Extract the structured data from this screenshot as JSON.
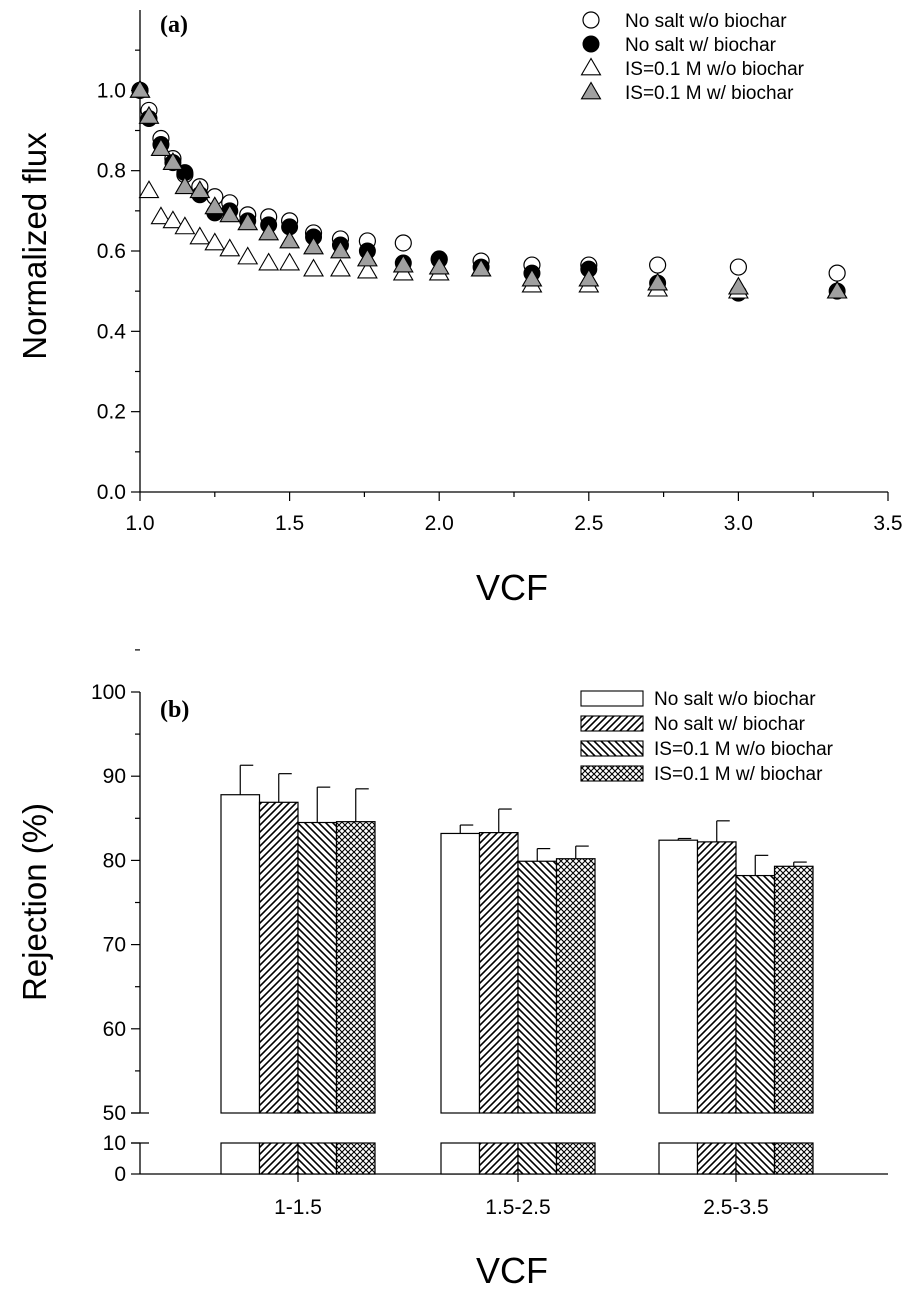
{
  "chart_data": [
    {
      "type": "scatter",
      "panel_label": "(a)",
      "xlabel": "VCF",
      "ylabel": "Normalized flux",
      "xlim": [
        1.0,
        3.5
      ],
      "ylim": [
        0.0,
        1.2
      ],
      "xticks": [
        "1.0",
        "1.5",
        "2.0",
        "2.5",
        "3.0",
        "3.5"
      ],
      "yticks": [
        "0.0",
        "0.2",
        "0.4",
        "0.6",
        "0.8",
        "1.0"
      ],
      "legend_position": "top-right",
      "series": [
        {
          "name": "No salt w/o biochar",
          "marker": "circle-open",
          "x": [
            1.0,
            1.03,
            1.07,
            1.11,
            1.15,
            1.2,
            1.25,
            1.3,
            1.36,
            1.43,
            1.5,
            1.58,
            1.67,
            1.76,
            1.88,
            2.0,
            2.14,
            2.31,
            2.5,
            2.73,
            3.0,
            3.33
          ],
          "y": [
            1.0,
            0.95,
            0.88,
            0.83,
            0.79,
            0.76,
            0.735,
            0.72,
            0.69,
            0.685,
            0.675,
            0.645,
            0.63,
            0.625,
            0.62,
            0.58,
            0.575,
            0.565,
            0.565,
            0.565,
            0.56,
            0.545
          ]
        },
        {
          "name": "No salt w/ biochar",
          "marker": "circle-filled",
          "x": [
            1.0,
            1.03,
            1.07,
            1.11,
            1.15,
            1.2,
            1.25,
            1.3,
            1.36,
            1.43,
            1.5,
            1.58,
            1.67,
            1.76,
            1.88,
            2.0,
            2.14,
            2.31,
            2.5,
            2.73,
            3.0,
            3.33
          ],
          "y": [
            1.0,
            0.93,
            0.865,
            0.82,
            0.795,
            0.74,
            0.695,
            0.7,
            0.675,
            0.665,
            0.66,
            0.635,
            0.615,
            0.6,
            0.57,
            0.578,
            0.56,
            0.545,
            0.555,
            0.52,
            0.495,
            0.5
          ]
        },
        {
          "name": "IS=0.1 M w/o biochar",
          "marker": "triangle-open",
          "x": [
            1.0,
            1.03,
            1.07,
            1.11,
            1.15,
            1.2,
            1.25,
            1.3,
            1.36,
            1.43,
            1.5,
            1.58,
            1.67,
            1.76,
            1.88,
            2.0,
            2.14,
            2.31,
            2.5,
            2.73,
            3.0,
            3.33
          ],
          "y": [
            1.0,
            0.75,
            0.685,
            0.675,
            0.66,
            0.635,
            0.62,
            0.605,
            0.585,
            0.57,
            0.57,
            0.555,
            0.555,
            0.55,
            0.545,
            0.545,
            0.555,
            0.515,
            0.515,
            0.505,
            0.5,
            0.5
          ]
        },
        {
          "name": "IS=0.1 M w/ biochar",
          "marker": "triangle-gray",
          "x": [
            1.0,
            1.03,
            1.07,
            1.11,
            1.15,
            1.2,
            1.25,
            1.3,
            1.36,
            1.43,
            1.5,
            1.58,
            1.67,
            1.76,
            1.88,
            2.0,
            2.14,
            2.31,
            2.5,
            2.73,
            3.0,
            3.33
          ],
          "y": [
            1.0,
            0.935,
            0.855,
            0.82,
            0.76,
            0.75,
            0.71,
            0.69,
            0.67,
            0.645,
            0.625,
            0.61,
            0.6,
            0.58,
            0.565,
            0.56,
            0.555,
            0.53,
            0.53,
            0.52,
            0.51,
            0.5
          ]
        }
      ]
    },
    {
      "type": "bar",
      "panel_label": "(b)",
      "xlabel": "VCF",
      "ylabel": "Rejection (%)",
      "categories": [
        "1-1.5",
        "1.5-2.5",
        "2.5-3.5"
      ],
      "axis_break": {
        "lower_range": [
          0,
          10
        ],
        "upper_range": [
          50,
          100
        ]
      },
      "yticks": [
        "0",
        "10",
        "50",
        "60",
        "70",
        "80",
        "90",
        "100"
      ],
      "legend_position": "top-right",
      "series": [
        {
          "name": "No salt w/o biochar",
          "pattern": "open",
          "values": [
            87.8,
            83.2,
            82.4
          ],
          "errors": [
            3.5,
            1.0,
            0.2
          ]
        },
        {
          "name": "No salt w/ biochar",
          "pattern": "hatch-forward",
          "values": [
            86.9,
            83.3,
            82.2
          ],
          "errors": [
            3.4,
            2.8,
            2.5
          ]
        },
        {
          "name": "IS=0.1 M w/o biochar",
          "pattern": "hatch-backward",
          "values": [
            84.5,
            79.9,
            78.2
          ],
          "errors": [
            4.2,
            1.5,
            2.4
          ]
        },
        {
          "name": "IS=0.1 M w/ biochar",
          "pattern": "crosshatch",
          "values": [
            84.6,
            80.2,
            79.3
          ],
          "errors": [
            3.9,
            1.5,
            0.5
          ]
        }
      ]
    }
  ]
}
